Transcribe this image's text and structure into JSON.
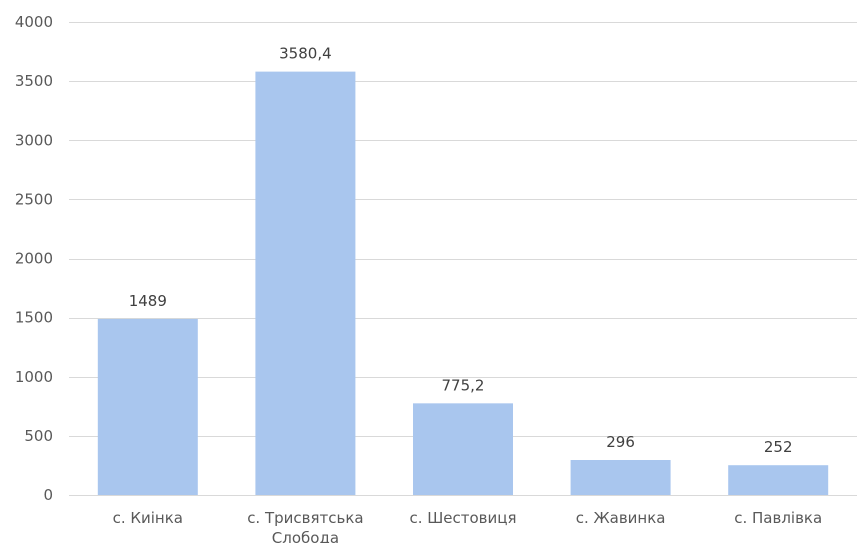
{
  "chart_data": {
    "type": "bar",
    "categories": [
      "с. Киінка",
      "с. Трисвятська Слобода",
      "с. Шестовиця",
      "с. Жавинка",
      "с. Павлівка"
    ],
    "category_label_lines": [
      [
        "с. Киінка"
      ],
      [
        "с. Трисвятська",
        "Слобода"
      ],
      [
        "с. Шестовиця"
      ],
      [
        "с. Жавинка"
      ],
      [
        "с. Павлівка"
      ]
    ],
    "values": [
      1489,
      3580.4,
      775.2,
      296,
      252
    ],
    "data_labels": [
      "1489",
      "3580,4",
      "775,2",
      "296",
      "252"
    ],
    "ylim": [
      0,
      4000
    ],
    "yticks": [
      0,
      500,
      1000,
      1500,
      2000,
      2500,
      3000,
      3500,
      4000
    ],
    "grid": true,
    "legend": "none",
    "bar_color": "#a9c6ee",
    "grid_color": "#d9d9d9",
    "label_color": "#595959"
  }
}
